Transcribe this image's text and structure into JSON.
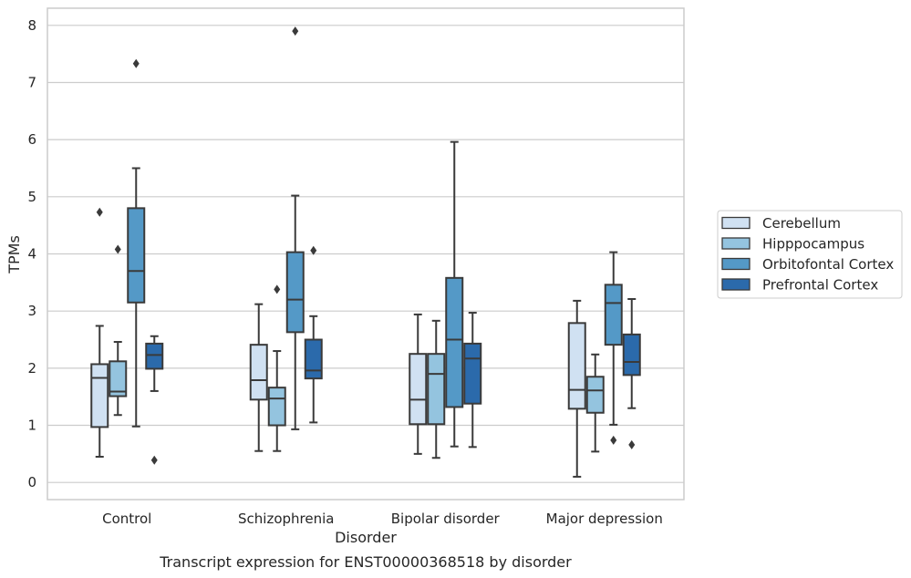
{
  "chart_data": {
    "type": "box",
    "xlabel": "Disorder",
    "ylabel": "TPMs",
    "caption": "Transcript expression for ENST00000368518 by disorder",
    "categories": [
      "Control",
      "Schizophrenia",
      "Bipolar disorder",
      "Major depression"
    ],
    "ylim": [
      -0.3,
      8.3
    ],
    "yticks": [
      "0",
      "1",
      "2",
      "3",
      "4",
      "5",
      "6",
      "7",
      "8"
    ],
    "grid": "horizontal",
    "legend_position": "right",
    "series": [
      {
        "name": "Cerebellum",
        "color": "#d0e1f2",
        "boxes": [
          {
            "whisker_low": 0.45,
            "q1": 0.97,
            "median": 1.83,
            "q3": 2.07,
            "whisker_high": 2.74,
            "outliers": [
              4.73
            ]
          },
          {
            "whisker_low": 0.55,
            "q1": 1.45,
            "median": 1.79,
            "q3": 2.41,
            "whisker_high": 3.12,
            "outliers": []
          },
          {
            "whisker_low": 0.5,
            "q1": 1.02,
            "median": 1.45,
            "q3": 2.25,
            "whisker_high": 2.94,
            "outliers": []
          },
          {
            "whisker_low": 0.1,
            "q1": 1.29,
            "median": 1.62,
            "q3": 2.79,
            "whisker_high": 3.18,
            "outliers": []
          }
        ]
      },
      {
        "name": "Hipppocampus",
        "color": "#94c4df",
        "boxes": [
          {
            "whisker_low": 1.18,
            "q1": 1.51,
            "median": 1.59,
            "q3": 2.12,
            "whisker_high": 2.46,
            "outliers": [
              4.08
            ]
          },
          {
            "whisker_low": 0.55,
            "q1": 1.0,
            "median": 1.47,
            "q3": 1.66,
            "whisker_high": 2.3,
            "outliers": [
              3.38
            ]
          },
          {
            "whisker_low": 0.43,
            "q1": 1.02,
            "median": 1.9,
            "q3": 2.25,
            "whisker_high": 2.83,
            "outliers": []
          },
          {
            "whisker_low": 0.54,
            "q1": 1.22,
            "median": 1.61,
            "q3": 1.85,
            "whisker_high": 2.24,
            "outliers": []
          }
        ]
      },
      {
        "name": "Orbitofontal Cortex",
        "color": "#5499c7",
        "boxes": [
          {
            "whisker_low": 0.98,
            "q1": 3.15,
            "median": 3.7,
            "q3": 4.8,
            "whisker_high": 5.5,
            "outliers": [
              7.33
            ]
          },
          {
            "whisker_low": 0.93,
            "q1": 2.63,
            "median": 3.2,
            "q3": 4.03,
            "whisker_high": 5.02,
            "outliers": [
              7.9
            ]
          },
          {
            "whisker_low": 0.63,
            "q1": 1.32,
            "median": 2.5,
            "q3": 3.58,
            "whisker_high": 5.96,
            "outliers": []
          },
          {
            "whisker_low": 1.01,
            "q1": 2.41,
            "median": 3.14,
            "q3": 3.46,
            "whisker_high": 4.03,
            "outliers": [
              0.74
            ]
          }
        ]
      },
      {
        "name": "Prefrontal Cortex",
        "color": "#2b6aab",
        "boxes": [
          {
            "whisker_low": 1.6,
            "q1": 1.99,
            "median": 2.23,
            "q3": 2.43,
            "whisker_high": 2.56,
            "outliers": [
              0.39
            ]
          },
          {
            "whisker_low": 1.05,
            "q1": 1.82,
            "median": 1.96,
            "q3": 2.5,
            "whisker_high": 2.91,
            "outliers": [
              4.06
            ]
          },
          {
            "whisker_low": 0.62,
            "q1": 1.38,
            "median": 2.17,
            "q3": 2.43,
            "whisker_high": 2.97,
            "outliers": []
          },
          {
            "whisker_low": 1.3,
            "q1": 1.88,
            "median": 2.11,
            "q3": 2.59,
            "whisker_high": 3.21,
            "outliers": [
              0.66
            ]
          }
        ]
      }
    ]
  }
}
